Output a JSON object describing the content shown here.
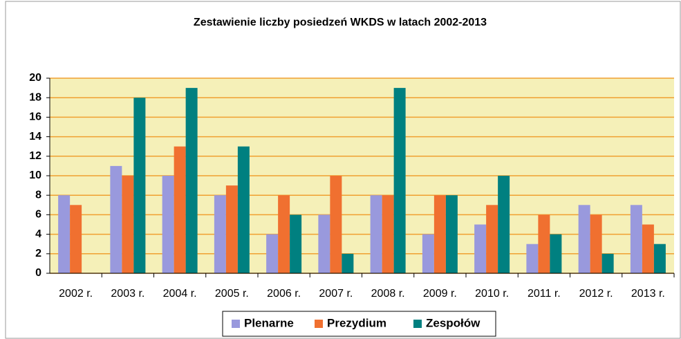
{
  "chart_data": {
    "type": "bar",
    "title": "Zestawienie liczby posiedzeń WKDS w latach 2002-2013",
    "categories": [
      "2002 r.",
      "2003 r.",
      "2004 r.",
      "2005 r.",
      "2006 r.",
      "2007 r.",
      "2008 r.",
      "2009 r.",
      "2010 r.",
      "2011 r.",
      "2012 r.",
      "2013 r."
    ],
    "series": [
      {
        "name": "Plenarne",
        "color": "#9999dd",
        "values": [
          8,
          11,
          10,
          8,
          4,
          6,
          8,
          4,
          5,
          3,
          7,
          7
        ]
      },
      {
        "name": "Prezydium",
        "color": "#f07030",
        "values": [
          7,
          10,
          13,
          9,
          8,
          10,
          8,
          8,
          7,
          6,
          6,
          5
        ]
      },
      {
        "name": "Zespołów",
        "color": "#008080",
        "values": [
          0,
          18,
          19,
          13,
          6,
          2,
          19,
          8,
          10,
          4,
          2,
          3
        ]
      }
    ],
    "ylim": [
      0,
      20
    ],
    "yticks": [
      0,
      2,
      4,
      6,
      8,
      10,
      12,
      14,
      16,
      18,
      20
    ],
    "grid": true,
    "legend": "bottom"
  }
}
